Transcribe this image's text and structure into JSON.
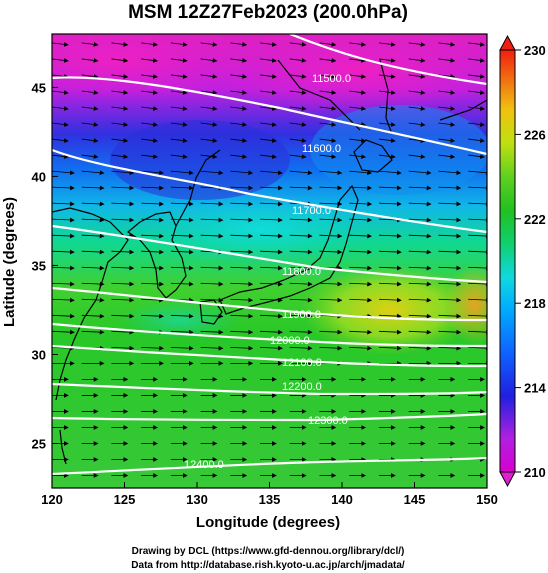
{
  "title": "MSM 12Z27Feb2023 (200.0hPa)",
  "x_axis": {
    "label": "Longitude (degrees)",
    "range": [
      120,
      150
    ],
    "ticks": [
      "120",
      "125",
      "130",
      "135",
      "140",
      "145",
      "150"
    ]
  },
  "y_axis": {
    "label": "Latitude  (degrees)",
    "range": [
      22.5,
      48
    ],
    "ticks": [
      "25",
      "30",
      "35",
      "40",
      "45"
    ]
  },
  "colorbar": {
    "range": [
      210,
      230
    ],
    "ticks": [
      "210",
      "214",
      "218",
      "222",
      "226",
      "230"
    ]
  },
  "contour_labels": [
    "11500.0",
    "11600.0",
    "11700.0",
    "11800.0",
    "11900.0",
    "12000.0",
    "12100.0",
    "12200.0",
    "12300.0",
    "12400.0"
  ],
  "credits": [
    "Drawing by DCL (https://www.gfd-dennou.org/library/dcl/)",
    "Data from http://database.rish.kyoto-u.ac.jp/arch/jmadata/"
  ],
  "chart_data": {
    "type": "heatmap",
    "title": "MSM 12Z27Feb2023 (200.0hPa)",
    "variable_range": [
      210,
      230
    ],
    "contour_levels": [
      11500,
      11600,
      11700,
      11800,
      11900,
      12000,
      12100,
      12200,
      12300,
      12400
    ],
    "contour_lines_lat": [
      {
        "level": 11500,
        "lat_at_lon": [
          [
            136,
            47.8
          ],
          [
            140,
            46.5
          ],
          [
            145,
            45.4
          ],
          [
            150,
            44.6
          ]
        ]
      },
      {
        "level": 11600,
        "lat_at_lon": [
          [
            120,
            44.2
          ],
          [
            126,
            44.3
          ],
          [
            132,
            43.4
          ],
          [
            138,
            42.9
          ],
          [
            144,
            42.0
          ],
          [
            150,
            40.9
          ]
        ]
      },
      {
        "level": 11700,
        "lat_at_lon": [
          [
            120,
            42.8
          ],
          [
            125,
            41.6
          ],
          [
            130,
            40.8
          ],
          [
            135,
            39.8
          ],
          [
            140,
            39.0
          ],
          [
            145,
            38.4
          ],
          [
            150,
            37.8
          ]
        ]
      },
      {
        "level": 11800,
        "lat_at_lon": [
          [
            120,
            38.3
          ],
          [
            125,
            37.8
          ],
          [
            130,
            37.0
          ],
          [
            135,
            36.4
          ],
          [
            140,
            35.6
          ],
          [
            145,
            35.3
          ],
          [
            150,
            35.2
          ]
        ]
      },
      {
        "level": 11900,
        "lat_at_lon": [
          [
            120,
            34.7
          ],
          [
            125,
            34.3
          ],
          [
            130,
            33.7
          ],
          [
            135,
            33.1
          ],
          [
            140,
            32.8
          ],
          [
            145,
            32.6
          ],
          [
            150,
            32.6
          ]
        ]
      },
      {
        "level": 12000,
        "lat_at_lon": [
          [
            120,
            32.6
          ],
          [
            125,
            32.3
          ],
          [
            130,
            31.9
          ],
          [
            135,
            31.5
          ],
          [
            140,
            31.3
          ],
          [
            145,
            31.2
          ],
          [
            150,
            31.2
          ]
        ]
      },
      {
        "level": 12100,
        "lat_at_lon": [
          [
            120,
            31.0
          ],
          [
            125,
            30.8
          ],
          [
            130,
            30.5
          ],
          [
            135,
            30.2
          ],
          [
            140,
            30.0
          ],
          [
            145,
            30.0
          ],
          [
            150,
            30.0
          ]
        ]
      },
      {
        "level": 12200,
        "lat_at_lon": [
          [
            120,
            28.8
          ],
          [
            125,
            28.6
          ],
          [
            130,
            28.4
          ],
          [
            135,
            28.2
          ],
          [
            140,
            28.2
          ],
          [
            145,
            28.2
          ],
          [
            150,
            28.3
          ]
        ]
      },
      {
        "level": 12300,
        "lat_at_lon": [
          [
            120,
            26.2
          ],
          [
            125,
            26.2
          ],
          [
            130,
            26.1
          ],
          [
            135,
            26.1
          ],
          [
            140,
            26.2
          ],
          [
            145,
            26.3
          ],
          [
            150,
            26.4
          ]
        ]
      },
      {
        "level": 12400,
        "lat_at_lon": [
          [
            120,
            23.3
          ],
          [
            125,
            23.5
          ],
          [
            130,
            23.6
          ],
          [
            135,
            23.7
          ],
          [
            140,
            23.9
          ],
          [
            145,
            24.0
          ],
          [
            150,
            24.1
          ]
        ]
      }
    ],
    "wind_vectors": "westerly, strongest near 30-40N",
    "grid": false,
    "legend": "colorbar-right"
  },
  "colors": {
    "shade_low": "#d800d0",
    "shade_mid": "#20c840",
    "shade_high": "#f04010",
    "contour": "#ffffff",
    "coast": "#000000"
  }
}
